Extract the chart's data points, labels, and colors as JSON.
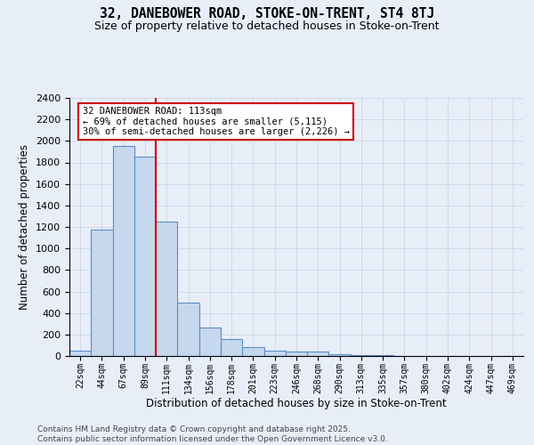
{
  "title": "32, DANEBOWER ROAD, STOKE-ON-TRENT, ST4 8TJ",
  "subtitle": "Size of property relative to detached houses in Stoke-on-Trent",
  "xlabel": "Distribution of detached houses by size in Stoke-on-Trent",
  "ylabel": "Number of detached properties",
  "categories": [
    "22sqm",
    "44sqm",
    "67sqm",
    "89sqm",
    "111sqm",
    "134sqm",
    "156sqm",
    "178sqm",
    "201sqm",
    "223sqm",
    "246sqm",
    "268sqm",
    "290sqm",
    "313sqm",
    "335sqm",
    "357sqm",
    "380sqm",
    "402sqm",
    "424sqm",
    "447sqm",
    "469sqm"
  ],
  "values": [
    50,
    1175,
    1950,
    1850,
    1250,
    500,
    265,
    160,
    80,
    50,
    45,
    40,
    20,
    10,
    5,
    3,
    2,
    2,
    1,
    1,
    1
  ],
  "bar_color": "#c5d8ee",
  "bar_edge_color": "#5b8cc8",
  "grid_color": "#ccd6e8",
  "background_color": "#e8eef8",
  "vline_color": "#cc0000",
  "vline_index": 3,
  "annotation_line1": "32 DANEBOWER ROAD: 113sqm",
  "annotation_line2": "← 69% of detached houses are smaller (5,115)",
  "annotation_line3": "30% of semi-detached houses are larger (2,226) →",
  "annotation_box_facecolor": "#ffffff",
  "annotation_box_edgecolor": "#cc0000",
  "ylim_max": 2400,
  "yticks": [
    0,
    200,
    400,
    600,
    800,
    1000,
    1200,
    1400,
    1600,
    1800,
    2000,
    2200,
    2400
  ],
  "footer_line1": "Contains HM Land Registry data © Crown copyright and database right 2025.",
  "footer_line2": "Contains public sector information licensed under the Open Government Licence v3.0."
}
